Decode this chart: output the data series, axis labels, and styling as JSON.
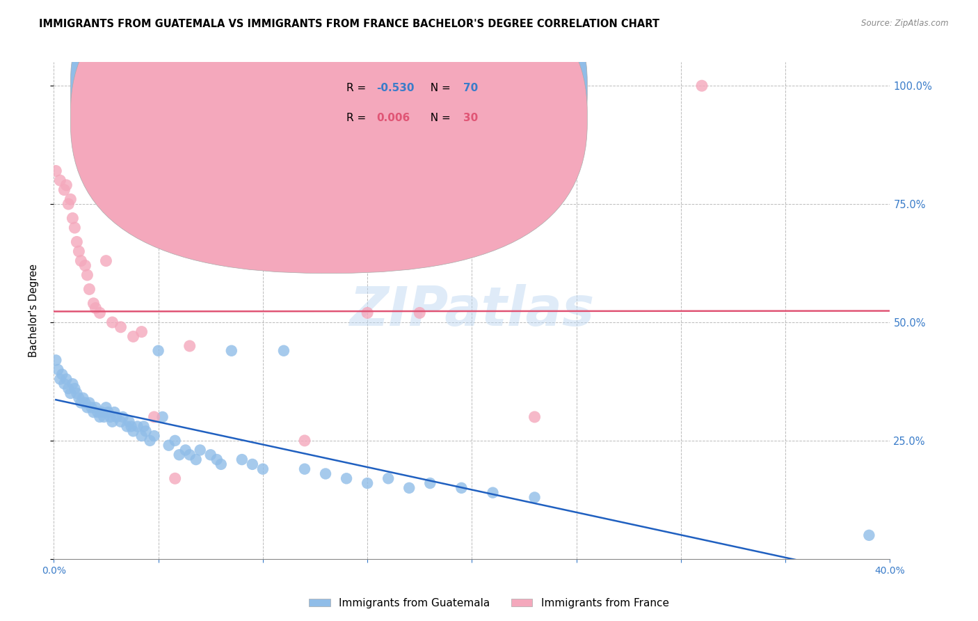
{
  "title": "IMMIGRANTS FROM GUATEMALA VS IMMIGRANTS FROM FRANCE BACHELOR'S DEGREE CORRELATION CHART",
  "source": "Source: ZipAtlas.com",
  "ylabel": "Bachelor's Degree",
  "watermark": "ZIPatlas",
  "guatemala_color": "#90bde8",
  "france_color": "#f4a8bc",
  "guatemala_line_color": "#2060c0",
  "france_line_color": "#e05575",
  "xlim": [
    0.0,
    0.4
  ],
  "ylim": [
    0.0,
    1.05
  ],
  "guatemala_x": [
    0.001,
    0.002,
    0.003,
    0.004,
    0.005,
    0.006,
    0.007,
    0.008,
    0.009,
    0.01,
    0.011,
    0.012,
    0.013,
    0.014,
    0.015,
    0.016,
    0.017,
    0.018,
    0.019,
    0.02,
    0.021,
    0.022,
    0.023,
    0.024,
    0.025,
    0.026,
    0.027,
    0.028,
    0.029,
    0.03,
    0.032,
    0.033,
    0.035,
    0.036,
    0.037,
    0.038,
    0.04,
    0.042,
    0.043,
    0.044,
    0.046,
    0.048,
    0.05,
    0.052,
    0.055,
    0.058,
    0.06,
    0.063,
    0.065,
    0.068,
    0.07,
    0.075,
    0.078,
    0.08,
    0.085,
    0.09,
    0.095,
    0.1,
    0.11,
    0.12,
    0.13,
    0.14,
    0.15,
    0.16,
    0.17,
    0.18,
    0.195,
    0.21,
    0.23,
    0.39
  ],
  "guatemala_y": [
    0.42,
    0.4,
    0.38,
    0.39,
    0.37,
    0.38,
    0.36,
    0.35,
    0.37,
    0.36,
    0.35,
    0.34,
    0.33,
    0.34,
    0.33,
    0.32,
    0.33,
    0.32,
    0.31,
    0.32,
    0.31,
    0.3,
    0.31,
    0.3,
    0.32,
    0.31,
    0.3,
    0.29,
    0.31,
    0.3,
    0.29,
    0.3,
    0.28,
    0.29,
    0.28,
    0.27,
    0.28,
    0.26,
    0.28,
    0.27,
    0.25,
    0.26,
    0.44,
    0.3,
    0.24,
    0.25,
    0.22,
    0.23,
    0.22,
    0.21,
    0.23,
    0.22,
    0.21,
    0.2,
    0.44,
    0.21,
    0.2,
    0.19,
    0.44,
    0.19,
    0.18,
    0.17,
    0.16,
    0.17,
    0.15,
    0.16,
    0.15,
    0.14,
    0.13,
    0.05
  ],
  "france_x": [
    0.001,
    0.003,
    0.005,
    0.006,
    0.007,
    0.008,
    0.009,
    0.01,
    0.011,
    0.012,
    0.013,
    0.015,
    0.016,
    0.017,
    0.019,
    0.02,
    0.022,
    0.025,
    0.028,
    0.032,
    0.038,
    0.042,
    0.048,
    0.058,
    0.065,
    0.12,
    0.15,
    0.175,
    0.23,
    0.31
  ],
  "france_y": [
    0.82,
    0.8,
    0.78,
    0.79,
    0.75,
    0.76,
    0.72,
    0.7,
    0.67,
    0.65,
    0.63,
    0.62,
    0.6,
    0.57,
    0.54,
    0.53,
    0.52,
    0.63,
    0.5,
    0.49,
    0.47,
    0.48,
    0.3,
    0.17,
    0.45,
    0.25,
    0.52,
    0.52,
    0.3,
    1.0
  ],
  "legend_r1": "R = ",
  "legend_r1_val": "-0.530",
  "legend_n1": "N = 70",
  "legend_r2": "R =  ",
  "legend_r2_val": "0.006",
  "legend_n2": "N = 30"
}
